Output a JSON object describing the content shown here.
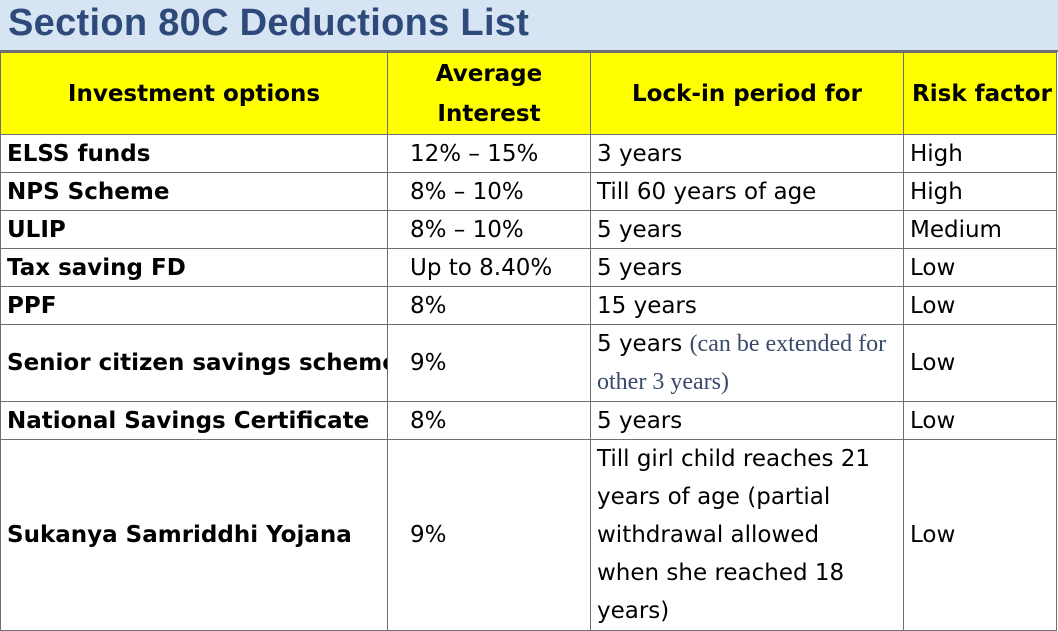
{
  "title": "Section 80C Deductions List",
  "headers": {
    "investment": "Investment options",
    "interest": "Average Interest",
    "lockin": "Lock-in period for",
    "risk": "Risk factor"
  },
  "rows": [
    {
      "name": "ELSS funds",
      "interest": "12% – 15%",
      "lockin": "3 years",
      "risk": "High"
    },
    {
      "name": "NPS Scheme",
      "interest": "8% – 10%",
      "lockin": "Till 60 years of age",
      "risk": "High"
    },
    {
      "name": "ULIP",
      "interest": "8% – 10%",
      "lockin": "5 years",
      "risk": "Medium"
    },
    {
      "name": "Tax saving FD",
      "interest": "Up to 8.40%",
      "lockin": "5 years",
      "risk": "Low"
    },
    {
      "name": "PPF",
      "interest": "8%",
      "lockin": "15 years",
      "risk": "Low"
    },
    {
      "name": "Senior citizen savings scheme",
      "interest": "9%",
      "lockin": "5 years",
      "lockin_note": "(can be extended for other 3 years)",
      "risk": "Low"
    },
    {
      "name": "National Savings Certificate",
      "interest": "8%",
      "lockin": "5 years",
      "risk": "Low"
    },
    {
      "name": "Sukanya Samriddhi Yojana",
      "interest": "9%",
      "lockin": "Till girl child reaches 21 years of age   (partial withdrawal allowed when she reached 18 years)",
      "risk": "Low"
    }
  ]
}
